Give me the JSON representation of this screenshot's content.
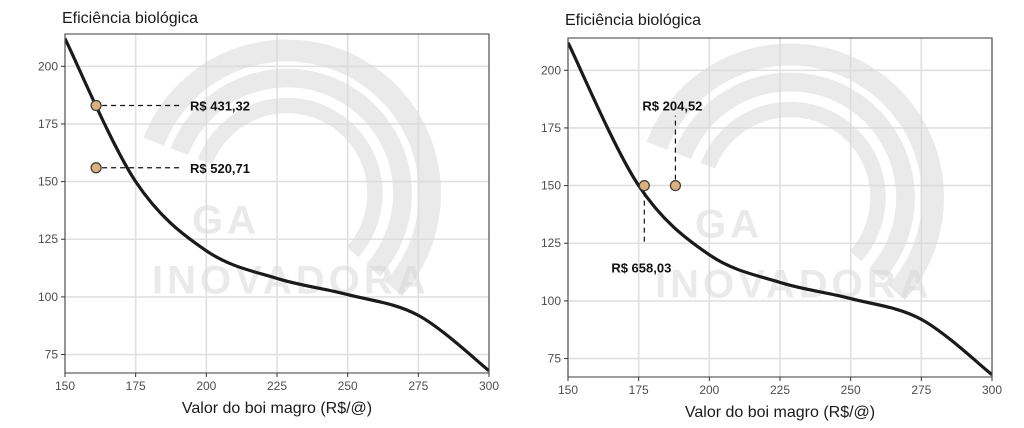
{
  "colors": {
    "curve": "#1a1a1a",
    "point_fill": "#d9b27c",
    "point_stroke": "#3a3a3a",
    "grid": "#e0e0e0",
    "panel_border": "#4d4d4d",
    "watermark": "#d9d9d9"
  },
  "watermark": {
    "big_text": "GA",
    "small_text": "INOVADORA"
  },
  "chart_data": [
    {
      "type": "line",
      "ylabel": "Eficiência biológica",
      "xlabel": "Valor do boi magro (R$/@)",
      "xlim": [
        150,
        300
      ],
      "ylim": [
        67,
        214
      ],
      "x_ticks": [
        150,
        175,
        200,
        225,
        250,
        275,
        300
      ],
      "y_ticks": [
        75,
        100,
        125,
        150,
        175,
        200
      ],
      "grid": true,
      "series": [
        {
          "x": [
            150,
            175,
            200,
            225,
            250,
            275,
            300
          ],
          "y": [
            212,
            150,
            120,
            108,
            101,
            92,
            68
          ]
        }
      ],
      "points": [
        {
          "x": 161,
          "y": 183,
          "label": "R$ 431,32"
        },
        {
          "x": 161,
          "y": 156,
          "label": "R$ 520,71"
        }
      ]
    },
    {
      "type": "line",
      "ylabel": "Eficiência biológica",
      "xlabel": "Valor do boi magro (R$/@)",
      "xlim": [
        150,
        300
      ],
      "ylim": [
        67,
        214
      ],
      "x_ticks": [
        150,
        175,
        200,
        225,
        250,
        275,
        300
      ],
      "y_ticks": [
        75,
        100,
        125,
        150,
        175,
        200
      ],
      "grid": true,
      "series": [
        {
          "x": [
            150,
            175,
            200,
            225,
            250,
            275,
            300
          ],
          "y": [
            212,
            150,
            120,
            108,
            101,
            92,
            68
          ]
        }
      ],
      "points": [
        {
          "x": 177,
          "y": 150,
          "label": "R$ 658,03"
        },
        {
          "x": 188,
          "y": 150,
          "label": "R$ 204,52"
        }
      ]
    }
  ]
}
